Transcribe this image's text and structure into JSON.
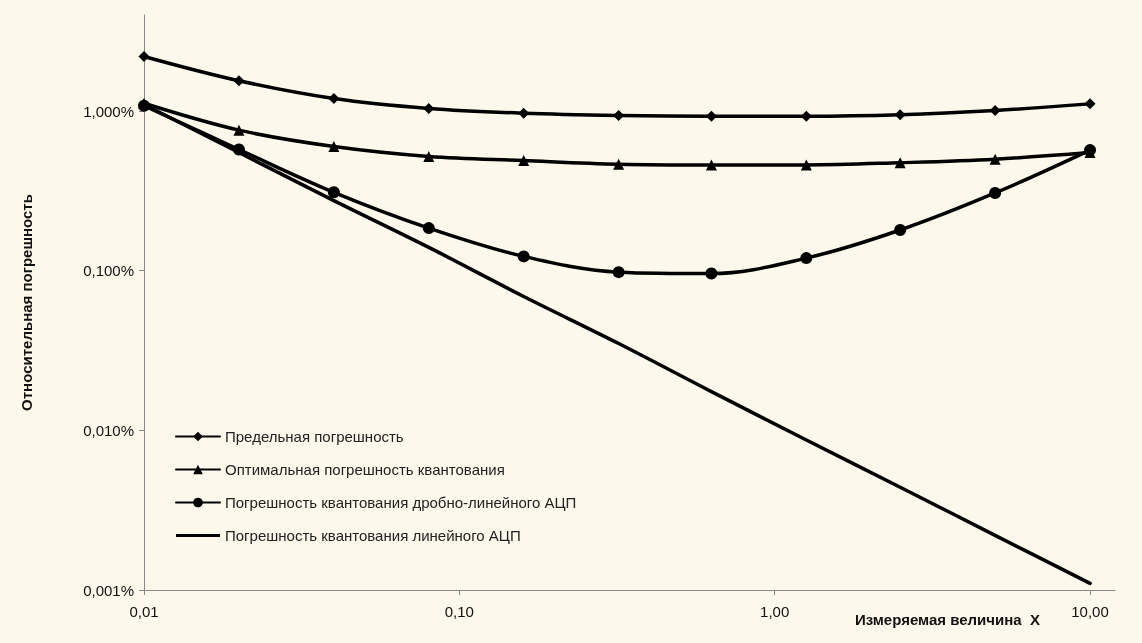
{
  "chart_data": {
    "type": "line",
    "xlabel": "Измеряемая величина  X",
    "ylabel": "Относительная погрешность",
    "x": [
      0.01,
      0.02,
      0.04,
      0.08,
      0.16,
      0.32,
      0.63,
      1.26,
      2.5,
      5,
      10
    ],
    "series": [
      {
        "name": "Предельная погрешность",
        "color": "#000000",
        "marker": "diamond",
        "values": [
          2.2,
          1.55,
          1.2,
          1.04,
          0.97,
          0.94,
          0.93,
          0.93,
          0.95,
          1.01,
          1.11
        ]
      },
      {
        "name": "Оптимальная погрешность квантования",
        "color": "#000000",
        "marker": "triangle",
        "values": [
          1.12,
          0.76,
          0.6,
          0.52,
          0.49,
          0.465,
          0.46,
          0.46,
          0.475,
          0.5,
          0.55
        ]
      },
      {
        "name": "Погрешность квантования дробно-линейного АЦП",
        "color": "#000000",
        "marker": "circle",
        "values": [
          1.08,
          0.575,
          0.31,
          0.185,
          0.123,
          0.098,
          0.096,
          0.12,
          0.18,
          0.307,
          0.57
        ]
      },
      {
        "name": "Погрешность квантования линейного АЦП",
        "color": "#000000",
        "marker": "none",
        "values": [
          1.1,
          0.55,
          0.275,
          0.14,
          0.069,
          0.035,
          0.0175,
          0.0087,
          0.0044,
          0.0022,
          0.0011
        ]
      }
    ],
    "log": "xy",
    "xlim": [
      0.01,
      12
    ],
    "ylim": [
      0.001,
      4
    ],
    "xticks": [
      {
        "value": 0.01,
        "label": "0,01"
      },
      {
        "value": 0.1,
        "label": "0,10"
      },
      {
        "value": 1,
        "label": "1,00"
      },
      {
        "value": 10,
        "label": "10,00"
      }
    ],
    "yticks": [
      {
        "value": 0.001,
        "label": "0,001%"
      },
      {
        "value": 0.01,
        "label": "0,010%"
      },
      {
        "value": 0.1,
        "label": "0,100%"
      },
      {
        "value": 1,
        "label": "1,000%"
      }
    ],
    "grid": false,
    "legend": "bottom left",
    "line_style": "solid"
  }
}
